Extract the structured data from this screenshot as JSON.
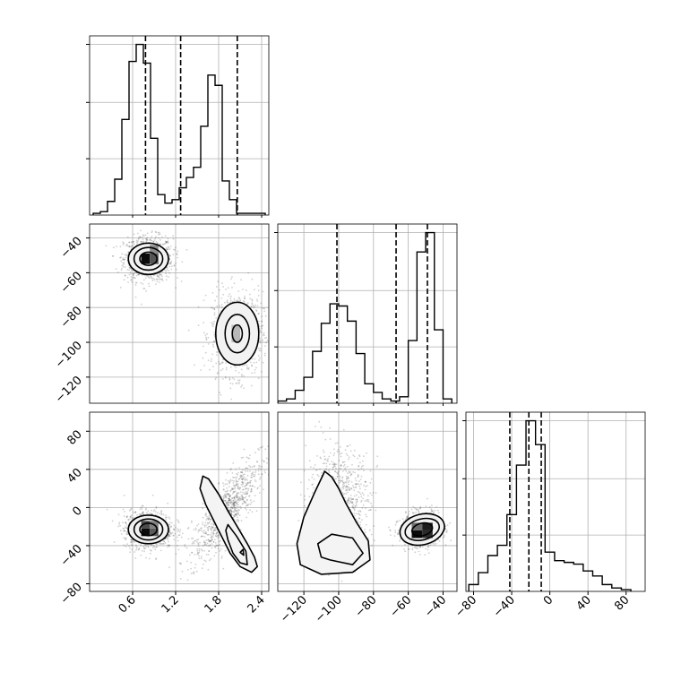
{
  "chart_data": {
    "type": "corner",
    "grid": true,
    "colors": {
      "line": "#000000",
      "grid": "#b0b0b0",
      "scatter": "#2b2b2b",
      "background": "#ffffff"
    },
    "parameters": [
      {
        "name": "",
        "range": [
          0.0,
          2.5
        ],
        "ticks": [
          "0.6",
          "1.2",
          "1.8",
          "2.4"
        ],
        "tick_values": [
          0.6,
          1.2,
          1.8,
          2.4
        ],
        "quantiles": [
          0.78,
          1.27,
          2.06
        ]
      },
      {
        "name": "",
        "range": [
          -135,
          -32
        ],
        "ticks": [
          "−120",
          "−100",
          "−80",
          "−60",
          "−40"
        ],
        "tick_values": [
          -120,
          -100,
          -80,
          -60,
          -40
        ],
        "quantiles": [
          -101,
          -67,
          -49
        ]
      },
      {
        "name": "",
        "range": [
          -88,
          100
        ],
        "ticks": [
          "−80",
          "−40",
          "0",
          "40",
          "80"
        ],
        "tick_values": [
          -80,
          -40,
          0,
          40,
          80
        ],
        "quantiles": [
          -42,
          -22,
          -9
        ]
      }
    ],
    "histograms": [
      {
        "param": 0,
        "bin_edges": [
          0.05,
          0.15,
          0.25,
          0.35,
          0.45,
          0.55,
          0.65,
          0.75,
          0.85,
          0.95,
          1.05,
          1.15,
          1.25,
          1.35,
          1.45,
          1.55,
          1.65,
          1.75,
          1.85,
          1.95,
          2.05,
          2.15,
          2.25,
          2.35,
          2.45
        ],
        "counts": [
          1,
          2,
          8,
          21,
          56,
          90,
          100,
          89,
          45,
          12,
          7,
          9,
          16,
          22,
          28,
          52,
          82,
          76,
          20,
          9,
          1,
          1,
          1,
          1
        ]
      },
      {
        "param": 1,
        "bin_edges": [
          -135,
          -130,
          -125,
          -120,
          -115,
          -110,
          -105,
          -100,
          -95,
          -90,
          -85,
          -80,
          -75,
          -70,
          -65,
          -60,
          -55,
          -50,
          -45,
          -40,
          -35
        ],
        "counts": [
          1,
          2,
          6,
          12,
          24,
          37,
          46,
          45,
          38,
          23,
          9,
          5,
          2,
          1,
          3,
          29,
          70,
          79,
          34,
          2
        ]
      },
      {
        "param": 2,
        "bin_edges": [
          -85,
          -75,
          -65,
          -55,
          -45,
          -35,
          -25,
          -15,
          -5,
          5,
          15,
          25,
          35,
          45,
          55,
          65,
          75,
          85
        ],
        "counts": [
          4,
          11,
          21,
          27,
          45,
          74,
          100,
          86,
          23,
          18,
          17,
          16,
          12,
          9,
          4,
          2,
          1
        ]
      }
    ],
    "panels_2d": [
      {
        "x_param": 0,
        "y_param": 1,
        "modes": [
          {
            "center": [
              0.82,
              -52
            ],
            "spread": [
              0.17,
              6.5
            ],
            "rotation": 0,
            "weight": 0.5
          },
          {
            "center": [
              2.06,
              -95
            ],
            "spread": [
              0.18,
              12
            ],
            "rotation": 0,
            "weight": 0.5
          }
        ],
        "contours": [
          {
            "center": [
              0.82,
              -52
            ],
            "semi_axes": [
              0.28,
              9
            ],
            "rotation": 0
          },
          {
            "center": [
              0.82,
              -52
            ],
            "semi_axes": [
              0.2,
              6.5
            ],
            "rotation": 0
          },
          {
            "center": [
              0.82,
              -52
            ],
            "semi_axes": [
              0.12,
              3.8
            ],
            "rotation": 0
          },
          {
            "center": [
              2.06,
              -95
            ],
            "semi_axes": [
              0.3,
              18
            ],
            "rotation": 0
          },
          {
            "center": [
              2.06,
              -95
            ],
            "semi_axes": [
              0.17,
              11
            ],
            "rotation": 0
          },
          {
            "center": [
              2.06,
              -95
            ],
            "semi_axes": [
              0.07,
              5
            ],
            "rotation": 0
          }
        ],
        "density_cells": [
          {
            "x": [
              0.72,
              0.84
            ],
            "y": [
              -55,
              -49
            ],
            "shade": "#0b0b0b"
          },
          {
            "x": [
              0.84,
              0.96
            ],
            "y": [
              -55,
              -49
            ],
            "shade": "#555555"
          },
          {
            "x": [
              0.84,
              0.96
            ],
            "y": [
              -49,
              -44
            ],
            "shade": "#8a8a8a"
          },
          {
            "x": [
              1.98,
              2.1
            ],
            "y": [
              -100,
              -90
            ],
            "shade": "#b8b8b8"
          }
        ]
      },
      {
        "x_param": 0,
        "y_param": 2,
        "modes": [
          {
            "center": [
              0.82,
              -23
            ],
            "spread": [
              0.17,
              10
            ],
            "rotation": 0,
            "weight": 0.5
          },
          {
            "center": [
              1.9,
              -5
            ],
            "spread": [
              0.12,
              30
            ],
            "rotation": -0.55,
            "weight": 0.5
          }
        ],
        "contours": [
          {
            "center": [
              0.82,
              -23
            ],
            "semi_axes": [
              0.28,
              15
            ],
            "rotation": 0
          },
          {
            "center": [
              0.82,
              -23
            ],
            "semi_axes": [
              0.2,
              11
            ],
            "rotation": 0
          },
          {
            "center": [
              0.82,
              -23
            ],
            "semi_axes": [
              0.12,
              6.5
            ],
            "rotation": 0
          }
        ],
        "contour_polylines": [
          [
            [
              1.54,
              20
            ],
            [
              1.58,
              33
            ],
            [
              1.66,
              30
            ],
            [
              1.8,
              14
            ],
            [
              1.94,
              -5
            ],
            [
              2.06,
              -20
            ],
            [
              2.2,
              -38
            ],
            [
              2.3,
              -52
            ],
            [
              2.34,
              -62
            ],
            [
              2.26,
              -68
            ],
            [
              2.1,
              -62
            ],
            [
              1.96,
              -48
            ],
            [
              1.84,
              -30
            ],
            [
              1.72,
              -12
            ],
            [
              1.62,
              3
            ],
            [
              1.54,
              20
            ]
          ],
          [
            [
              1.93,
              -18
            ],
            [
              2.05,
              -30
            ],
            [
              2.18,
              -46
            ],
            [
              2.2,
              -60
            ],
            [
              2.1,
              -58
            ],
            [
              2.0,
              -48
            ],
            [
              1.93,
              -34
            ],
            [
              1.9,
              -24
            ],
            [
              1.93,
              -18
            ]
          ],
          [
            [
              2.1,
              -47
            ],
            [
              2.14,
              -44
            ],
            [
              2.15,
              -50
            ],
            [
              2.1,
              -47
            ]
          ]
        ],
        "density_cells": [
          {
            "x": [
              0.72,
              0.84
            ],
            "y": [
              -30,
              -22
            ],
            "shade": "#0b0b0b"
          },
          {
            "x": [
              0.72,
              0.84
            ],
            "y": [
              -22,
              -14
            ],
            "shade": "#4a4a4a"
          },
          {
            "x": [
              0.84,
              0.96
            ],
            "y": [
              -30,
              -22
            ],
            "shade": "#5a5a5a"
          },
          {
            "x": [
              0.84,
              0.96
            ],
            "y": [
              -22,
              -14
            ],
            "shade": "#808080"
          }
        ]
      },
      {
        "x_param": 1,
        "y_param": 2,
        "modes": [
          {
            "center": [
              -100,
              5
            ],
            "spread": [
              9,
              28
            ],
            "rotation": 0,
            "weight": 0.5
          },
          {
            "center": [
              -52,
              -23
            ],
            "spread": [
              6,
              9
            ],
            "rotation": 0.25,
            "weight": 0.5
          }
        ],
        "contours": [
          {
            "center": [
              -52,
              -23
            ],
            "semi_axes": [
              13,
              16
            ],
            "rotation": 0.25
          },
          {
            "center": [
              -52,
              -23
            ],
            "semi_axes": [
              10,
              11
            ],
            "rotation": 0.25
          },
          {
            "center": [
              -52,
              -23
            ],
            "semi_axes": [
              6,
              6.5
            ],
            "rotation": 0.25
          }
        ],
        "contour_polylines": [
          [
            [
              -108,
              38
            ],
            [
              -104,
              32
            ],
            [
              -100,
              20
            ],
            [
              -96,
              5
            ],
            [
              -90,
              -15
            ],
            [
              -83,
              -35
            ],
            [
              -82,
              -55
            ],
            [
              -92,
              -68
            ],
            [
              -110,
              -70
            ],
            [
              -122,
              -60
            ],
            [
              -124,
              -38
            ],
            [
              -120,
              -10
            ],
            [
              -114,
              15
            ],
            [
              -108,
              38
            ]
          ],
          [
            [
              -105,
              -55
            ],
            [
              -92,
              -60
            ],
            [
              -86,
              -48
            ],
            [
              -92,
              -32
            ],
            [
              -104,
              -28
            ],
            [
              -112,
              -38
            ],
            [
              -110,
              -52
            ],
            [
              -105,
              -55
            ]
          ]
        ],
        "density_cells": [
          {
            "x": [
              -58,
              -52
            ],
            "y": [
              -32,
              -24
            ],
            "shade": "#0b0b0b"
          },
          {
            "x": [
              -52,
              -46
            ],
            "y": [
              -32,
              -24
            ],
            "shade": "#2a2a2a"
          },
          {
            "x": [
              -52,
              -46
            ],
            "y": [
              -24,
              -16
            ],
            "shade": "#1c1c1c"
          },
          {
            "x": [
              -58,
              -52
            ],
            "y": [
              -24,
              -16
            ],
            "shade": "#6a6a6a"
          }
        ]
      }
    ]
  }
}
